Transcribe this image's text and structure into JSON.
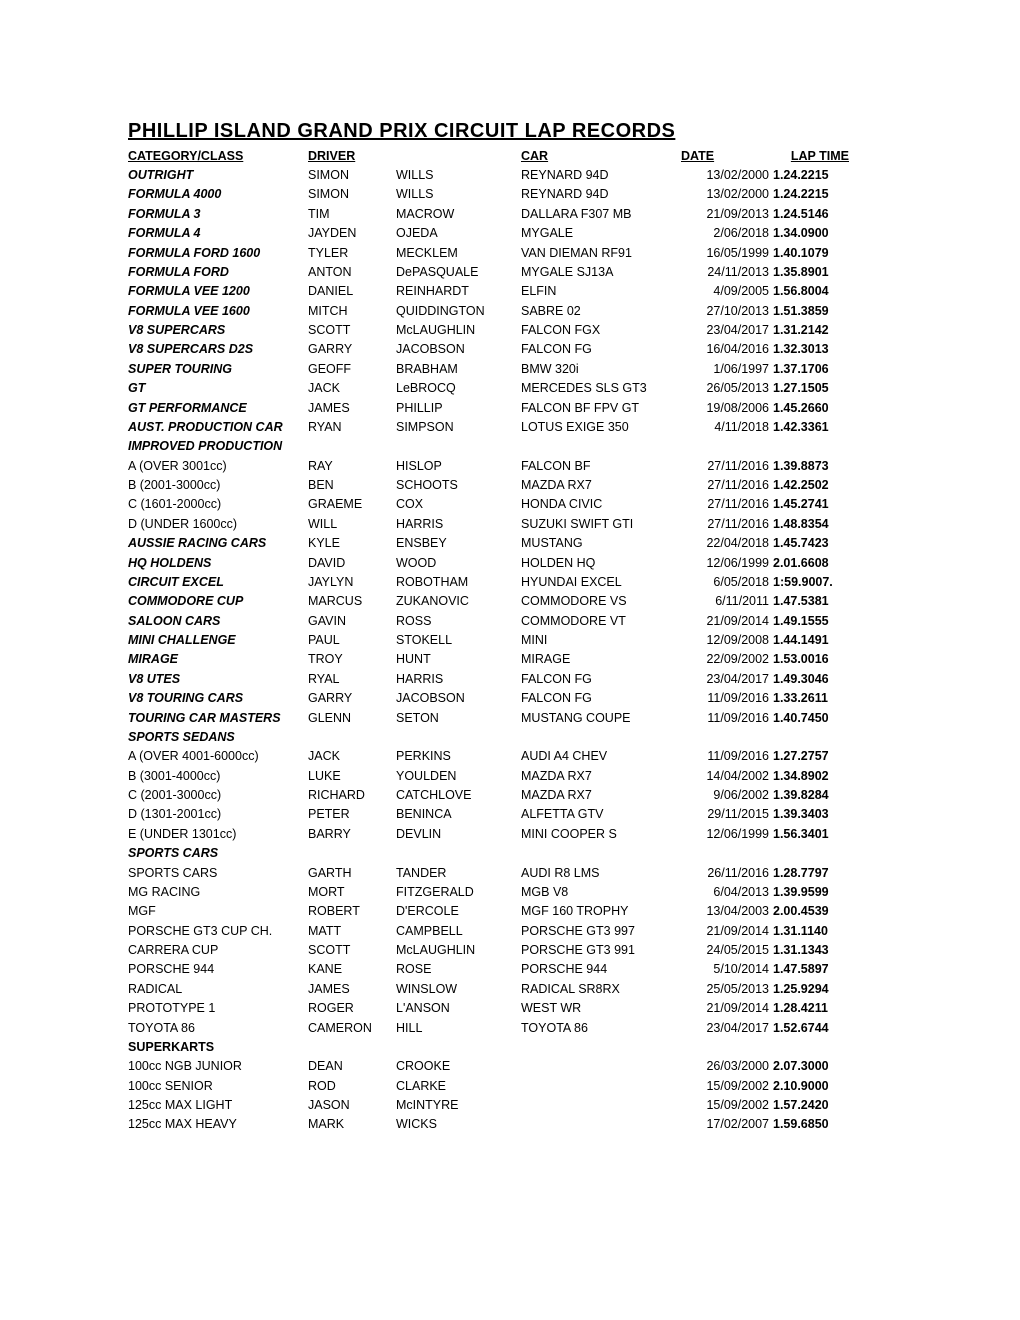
{
  "title": "PHILLIP ISLAND GRAND PRIX CIRCUIT LAP RECORDS",
  "headers": {
    "category": "CATEGORY/CLASS",
    "driver": "DRIVER",
    "car": "CAR",
    "date": "DATE",
    "laptime": "LAP TIME"
  },
  "rows": [
    {
      "category": "OUTRIGHT",
      "style": "bi",
      "firstname": "SIMON",
      "lastname": "WILLS",
      "car": "REYNARD 94D",
      "date": "13/02/2000",
      "laptime": "1.24.2215"
    },
    {
      "category": "FORMULA 4000",
      "style": "bi",
      "firstname": "SIMON",
      "lastname": "WILLS",
      "car": "REYNARD 94D",
      "date": "13/02/2000",
      "laptime": "1.24.2215"
    },
    {
      "category": "FORMULA 3",
      "style": "bi",
      "firstname": "TIM",
      "lastname": "MACROW",
      "car": "DALLARA F307 MB",
      "date": "21/09/2013",
      "laptime": "1.24.5146"
    },
    {
      "category": "FORMULA 4",
      "style": "bi",
      "firstname": "JAYDEN",
      "lastname": "OJEDA",
      "car": "MYGALE",
      "date": "2/06/2018",
      "laptime": "1.34.0900"
    },
    {
      "category": "FORMULA FORD 1600",
      "style": "bi",
      "firstname": "TYLER",
      "lastname": "MECKLEM",
      "car": "VAN DIEMAN RF91",
      "date": "16/05/1999",
      "laptime": "1.40.1079"
    },
    {
      "category": "FORMULA FORD",
      "style": "bi",
      "firstname": "ANTON",
      "lastname": "DePASQUALE",
      "car": "MYGALE SJ13A",
      "date": "24/11/2013",
      "laptime": "1.35.8901"
    },
    {
      "category": "FORMULA VEE 1200",
      "style": "bi",
      "firstname": "DANIEL",
      "lastname": "REINHARDT",
      "car": "ELFIN",
      "date": "4/09/2005",
      "laptime": "1.56.8004"
    },
    {
      "category": "FORMULA VEE 1600",
      "style": "bi",
      "firstname": "MITCH",
      "lastname": "QUIDDINGTON",
      "car": "SABRE 02",
      "date": "27/10/2013",
      "laptime": "1.51.3859"
    },
    {
      "category": "V8 SUPERCARS",
      "style": "bi",
      "firstname": "SCOTT",
      "lastname": "McLAUGHLIN",
      "car": "FALCON FGX",
      "date": "23/04/2017",
      "laptime": "1.31.2142"
    },
    {
      "category": "V8 SUPERCARS D2S",
      "style": "bi",
      "firstname": "GARRY",
      "lastname": "JACOBSON",
      "car": "FALCON FG",
      "date": "16/04/2016",
      "laptime": "1.32.3013"
    },
    {
      "category": "SUPER TOURING",
      "style": "bi",
      "firstname": "GEOFF",
      "lastname": "BRABHAM",
      "car": "BMW 320i",
      "date": "1/06/1997",
      "laptime": "1.37.1706"
    },
    {
      "category": "GT",
      "style": "bi",
      "firstname": "JACK",
      "lastname": "LeBROCQ",
      "car": "MERCEDES SLS GT3",
      "date": "26/05/2013",
      "laptime": "1.27.1505"
    },
    {
      "category": "GT PERFORMANCE",
      "style": "bi",
      "firstname": "JAMES",
      "lastname": "PHILLIP",
      "car": "FALCON BF FPV GT",
      "date": "19/08/2006",
      "laptime": "1.45.2660"
    },
    {
      "category": "AUST. PRODUCTION CAR",
      "style": "bi",
      "firstname": "RYAN",
      "lastname": "SIMPSON",
      "car": "LOTUS EXIGE 350",
      "date": "4/11/2018",
      "laptime": "1.42.3361"
    },
    {
      "category": "IMPROVED PRODUCTION",
      "style": "section"
    },
    {
      "category": "A (OVER 3001cc)",
      "style": "",
      "firstname": "RAY",
      "lastname": "HISLOP",
      "car": "FALCON BF",
      "date": "27/11/2016",
      "laptime": "1.39.8873"
    },
    {
      "category": "B (2001-3000cc)",
      "style": "",
      "firstname": "BEN",
      "lastname": "SCHOOTS",
      "car": "MAZDA RX7",
      "date": "27/11/2016",
      "laptime": "1.42.2502"
    },
    {
      "category": "C (1601-2000cc)",
      "style": "",
      "firstname": "GRAEME",
      "lastname": "COX",
      "car": "HONDA CIVIC",
      "date": "27/11/2016",
      "laptime": "1.45.2741"
    },
    {
      "category": "D (UNDER 1600cc)",
      "style": "",
      "firstname": "WILL",
      "lastname": "HARRIS",
      "car": "SUZUKI SWIFT GTI",
      "date": "27/11/2016",
      "laptime": "1.48.8354"
    },
    {
      "category": "AUSSIE RACING CARS",
      "style": "bi",
      "firstname": "KYLE",
      "lastname": "ENSBEY",
      "car": "MUSTANG",
      "date": "22/04/2018",
      "laptime": "1.45.7423"
    },
    {
      "category": "HQ HOLDENS",
      "style": "bi",
      "firstname": "DAVID",
      "lastname": "WOOD",
      "car": "HOLDEN HQ",
      "date": "12/06/1999",
      "laptime": "2.01.6608"
    },
    {
      "category": "CIRCUIT EXCEL",
      "style": "bi",
      "firstname": "JAYLYN",
      "lastname": "ROBOTHAM",
      "car": "HYUNDAI EXCEL",
      "date": "6/05/2018",
      "laptime": "1:59.9007."
    },
    {
      "category": "COMMODORE CUP",
      "style": "bi",
      "firstname": "MARCUS",
      "lastname": "ZUKANOVIC",
      "car": "COMMODORE VS",
      "date": "6/11/2011",
      "laptime": "1.47.5381"
    },
    {
      "category": "SALOON CARS",
      "style": "bi",
      "firstname": "GAVIN",
      "lastname": "ROSS",
      "car": "COMMODORE VT",
      "date": "21/09/2014",
      "laptime": "1.49.1555"
    },
    {
      "category": "MINI CHALLENGE",
      "style": "bi",
      "firstname": "PAUL",
      "lastname": "STOKELL",
      "car": "MINI",
      "date": "12/09/2008",
      "laptime": "1.44.1491"
    },
    {
      "category": "MIRAGE",
      "style": "bi",
      "firstname": "TROY",
      "lastname": "HUNT",
      "car": "MIRAGE",
      "date": "22/09/2002",
      "laptime": "1.53.0016"
    },
    {
      "category": "V8 UTES",
      "style": "bi",
      "firstname": "RYAL",
      "lastname": "HARRIS",
      "car": "FALCON FG",
      "date": "23/04/2017",
      "laptime": "1.49.3046"
    },
    {
      "category": "V8 TOURING CARS",
      "style": "bi",
      "firstname": "GARRY",
      "lastname": "JACOBSON",
      "car": "FALCON FG",
      "date": "11/09/2016",
      "laptime": "1.33.2611"
    },
    {
      "category": "TOURING CAR MASTERS",
      "style": "bi",
      "firstname": "GLENN",
      "lastname": "SETON",
      "car": "MUSTANG COUPE",
      "date": "11/09/2016",
      "laptime": "1.40.7450"
    },
    {
      "category": "SPORTS SEDANS",
      "style": "section"
    },
    {
      "category": "A (OVER 4001-6000cc)",
      "style": "",
      "firstname": "JACK",
      "lastname": "PERKINS",
      "car": "AUDI A4 CHEV",
      "date": "11/09/2016",
      "laptime": "1.27.2757"
    },
    {
      "category": "B (3001-4000cc)",
      "style": "",
      "firstname": "LUKE",
      "lastname": "YOULDEN",
      "car": "MAZDA RX7",
      "date": "14/04/2002",
      "laptime": "1.34.8902"
    },
    {
      "category": "C (2001-3000cc)",
      "style": "",
      "firstname": "RICHARD",
      "lastname": "CATCHLOVE",
      "car": "MAZDA RX7",
      "date": "9/06/2002",
      "laptime": "1.39.8284"
    },
    {
      "category": "D (1301-2001cc)",
      "style": "",
      "firstname": "PETER",
      "lastname": "BENINCA",
      "car": "ALFETTA GTV",
      "date": "29/11/2015",
      "laptime": "1.39.3403"
    },
    {
      "category": "E (UNDER 1301cc)",
      "style": "",
      "firstname": "BARRY",
      "lastname": "DEVLIN",
      "car": "MINI COOPER S",
      "date": "12/06/1999",
      "laptime": "1.56.3401"
    },
    {
      "category": "SPORTS CARS",
      "style": "section"
    },
    {
      "category": "SPORTS CARS",
      "style": "",
      "firstname": "GARTH",
      "lastname": "TANDER",
      "car": "AUDI R8 LMS",
      "date": "26/11/2016",
      "laptime": "1.28.7797"
    },
    {
      "category": "MG RACING",
      "style": "",
      "firstname": "MORT",
      "lastname": "FITZGERALD",
      "car": "MGB V8",
      "date": "6/04/2013",
      "laptime": "1.39.9599"
    },
    {
      "category": "MGF",
      "style": "",
      "firstname": "ROBERT",
      "lastname": "D'ERCOLE",
      "car": "MGF 160 TROPHY",
      "date": "13/04/2003",
      "laptime": "2.00.4539"
    },
    {
      "category": "PORSCHE GT3 CUP CH.",
      "style": "",
      "firstname": "MATT",
      "lastname": "CAMPBELL",
      "car": "PORSCHE GT3 997",
      "date": "21/09/2014",
      "laptime": "1.31.1140"
    },
    {
      "category": "CARRERA CUP",
      "style": "",
      "firstname": "SCOTT",
      "lastname": "McLAUGHLIN",
      "car": "PORSCHE GT3 991",
      "date": "24/05/2015",
      "laptime": "1.31.1343"
    },
    {
      "category": "PORSCHE 944",
      "style": "",
      "firstname": "KANE",
      "lastname": "ROSE",
      "car": "PORSCHE 944",
      "date": "5/10/2014",
      "laptime": "1.47.5897"
    },
    {
      "category": "RADICAL",
      "style": "",
      "firstname": "JAMES",
      "lastname": "WINSLOW",
      "car": "RADICAL SR8RX",
      "date": "25/05/2013",
      "laptime": "1.25.9294"
    },
    {
      "category": "PROTOTYPE 1",
      "style": "",
      "firstname": "ROGER",
      "lastname": "L'ANSON",
      "car": "WEST WR",
      "date": "21/09/2014",
      "laptime": "1.28.4211"
    },
    {
      "category": "TOYOTA 86",
      "style": "",
      "firstname": "CAMERON",
      "lastname": "HILL",
      "car": "TOYOTA 86",
      "date": "23/04/2017",
      "laptime": "1.52.6744"
    },
    {
      "category": "SUPERKARTS",
      "style": "sectionb"
    },
    {
      "category": "100cc NGB JUNIOR",
      "style": "",
      "firstname": "DEAN",
      "lastname": "CROOKE",
      "car": "",
      "date": "26/03/2000",
      "laptime": "2.07.3000"
    },
    {
      "category": "100cc SENIOR",
      "style": "",
      "firstname": "ROD",
      "lastname": "CLARKE",
      "car": "",
      "date": "15/09/2002",
      "laptime": "2.10.9000"
    },
    {
      "category": "125cc MAX LIGHT",
      "style": "",
      "firstname": "JASON",
      "lastname": "McINTYRE",
      "car": "",
      "date": "15/09/2002",
      "laptime": "1.57.2420"
    },
    {
      "category": "125cc MAX HEAVY",
      "style": "",
      "firstname": "MARK",
      "lastname": "WICKS",
      "car": "",
      "date": "17/02/2007",
      "laptime": "1.59.6850"
    }
  ]
}
